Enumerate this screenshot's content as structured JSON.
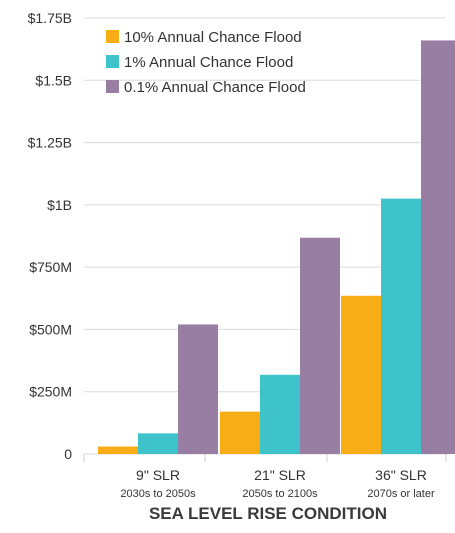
{
  "chart_data": {
    "type": "bar",
    "title": "",
    "xlabel": "SEA LEVEL RISE CONDITION",
    "ylabel": "",
    "ylim": [
      0,
      1750000000
    ],
    "yticks": [
      {
        "value": 0,
        "label": "0"
      },
      {
        "value": 250000000,
        "label": "$250M"
      },
      {
        "value": 500000000,
        "label": "$500M"
      },
      {
        "value": 750000000,
        "label": "$750M"
      },
      {
        "value": 1000000000,
        "label": "$1B"
      },
      {
        "value": 1250000000,
        "label": "$1.25B"
      },
      {
        "value": 1500000000,
        "label": "$1.5B"
      },
      {
        "value": 1750000000,
        "label": "$1.75B"
      }
    ],
    "categories": [
      {
        "label": "9\" SLR",
        "sub": "2030s to 2050s"
      },
      {
        "label": "21\" SLR",
        "sub": "2050s to 2100s"
      },
      {
        "label": "36\" SLR",
        "sub": "2070s or later"
      }
    ],
    "series": [
      {
        "name": "10% Annual Chance Flood",
        "color": "#f8ad17",
        "values": [
          30000000,
          170000000,
          635000000
        ]
      },
      {
        "name": "1% Annual Chance Flood",
        "color": "#3ec3cb",
        "values": [
          83000000,
          318000000,
          1025000000
        ]
      },
      {
        "name": "0.1% Annual Chance Flood",
        "color": "#977ea2",
        "values": [
          520000000,
          868000000,
          1660000000
        ]
      }
    ],
    "grid": "horizontal",
    "legend_position": "top-left"
  }
}
